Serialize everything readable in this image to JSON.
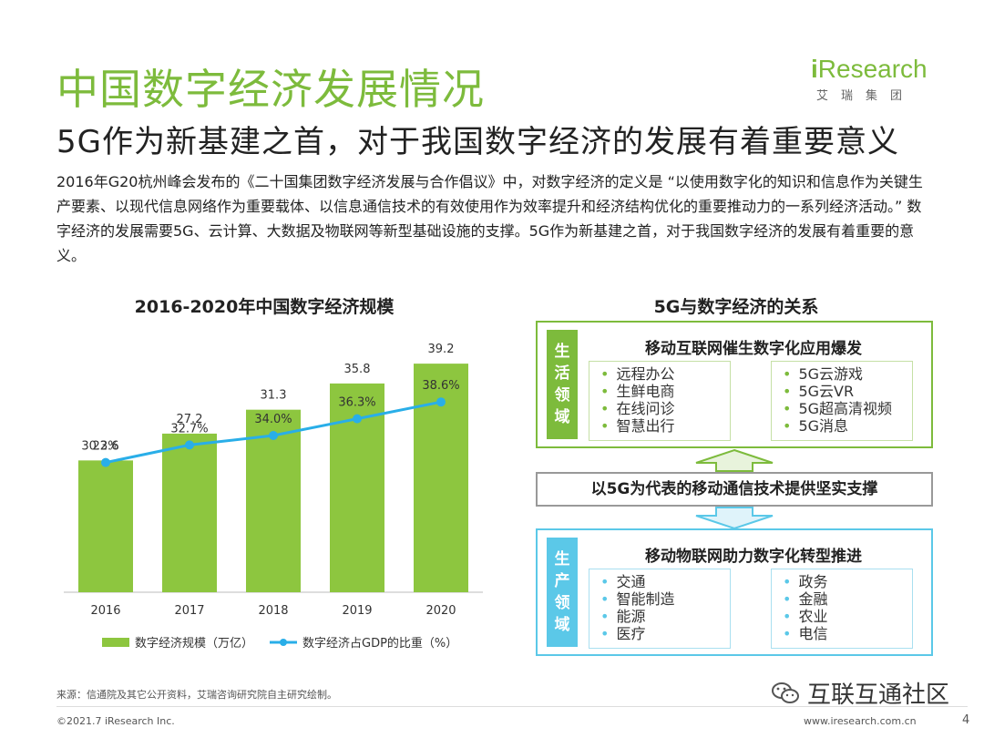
{
  "header": {
    "title": "中国数字经济发展情况",
    "subtitle": "5G作为新基建之首，对于我国数字经济的发展有着重要意义",
    "logo_main": "Research",
    "logo_i": "i",
    "logo_sub": "艾瑞集团"
  },
  "intro": "2016年G20杭州峰会发布的《二十国集团数字经济发展与合作倡议》中，对数字经济的定义是 “以使用数字化的知识和信息作为关键生产要素、以现代信息网络作为重要载体、以信息通信技术的有效使用作为效率提升和经济结构优化的重要推动力的一系列经济活动。” 数字经济的发展需要5G、云计算、大数据及物联网等新型基础设施的支撑。5G作为新基建之首，对于我国数字经济的发展有着重要的意义。",
  "chart_data": {
    "type": "bar",
    "title": "2016-2020年中国数字经济规模",
    "categories": [
      "2016",
      "2017",
      "2018",
      "2019",
      "2020"
    ],
    "series": [
      {
        "name": "数字经济规模（万亿）",
        "type": "bar",
        "values": [
          22.6,
          27.2,
          31.3,
          35.8,
          39.2
        ],
        "labels": [
          "22.6",
          "27.2",
          "31.3",
          "35.8",
          "39.2"
        ],
        "color": "#8dc63f"
      },
      {
        "name": "数字经济占GDP的比重（%）",
        "type": "line",
        "values": [
          30.3,
          32.7,
          34.0,
          36.3,
          38.6
        ],
        "labels": [
          "30.3%",
          "32.7%",
          "34.0%",
          "36.3%",
          "38.6%"
        ],
        "color": "#29aee8"
      }
    ],
    "legend": "bottom"
  },
  "relation": {
    "title": "5G与数字经济的关系",
    "top": {
      "side": [
        "生",
        "活",
        "领",
        "域"
      ],
      "head": "移动互联网催生数字化应用爆发",
      "left": [
        "远程办公",
        "生鲜电商",
        "在线问诊",
        "智慧出行"
      ],
      "right": [
        "5G云游戏",
        "5G云VR",
        "5G超高清视频",
        "5G消息"
      ]
    },
    "middle": "以5G为代表的移动通信技术提供坚实支撑",
    "bottom": {
      "side": [
        "生",
        "产",
        "领",
        "域"
      ],
      "head": "移动物联网助力数字化转型推进",
      "left": [
        "交通",
        "智能制造",
        "能源",
        "医疗"
      ],
      "right": [
        "政务",
        "金融",
        "农业",
        "电信"
      ]
    },
    "colors": {
      "green": "#7dbb3c",
      "blue": "#5bc8e8"
    }
  },
  "footer": {
    "source": "来源：信通院及其它公开资料，艾瑞咨询研究院自主研究绘制。",
    "copyright": "©2021.7 iResearch Inc.",
    "site": "www.iresearch.com.cn",
    "page": "4",
    "watermark": "互联互通社区"
  }
}
